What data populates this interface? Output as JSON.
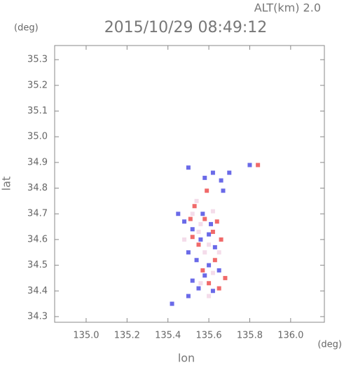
{
  "chart_data": {
    "type": "scatter",
    "annotation": "ALT(km) 2.0",
    "title": "2015/10/29 08:49:12",
    "y_unit": "(deg)",
    "x_unit": "(deg)",
    "ylabel": "lat",
    "xlabel": "lon",
    "xlim": [
      134.846,
      136.165
    ],
    "ylim": [
      34.278,
      35.355
    ],
    "xticks": [
      {
        "value": 135,
        "label": "135.0"
      },
      135.2,
      135.4,
      135.6,
      135.8,
      {
        "value": 136,
        "label": "136.0"
      }
    ],
    "yticks": [
      34.3,
      34.4,
      34.5,
      34.6,
      34.7,
      34.8,
      34.9,
      {
        "value": 35,
        "label": "35.0"
      },
      35.1,
      35.2,
      35.3
    ],
    "series": [
      {
        "color": "#f4dcea",
        "x": [
          135.52,
          135.56,
          135.6,
          135.55,
          135.58,
          135.62,
          135.56,
          135.6,
          135.48,
          135.54,
          135.65,
          135.62
        ],
        "values": [
          34.7,
          34.66,
          34.58,
          34.63,
          34.55,
          34.47,
          34.43,
          34.38,
          34.6,
          34.75,
          34.55,
          34.71
        ]
      },
      {
        "color": "#6a6ae8",
        "x": [
          135.5,
          135.62,
          135.58,
          135.66,
          135.45,
          135.48,
          135.52,
          135.56,
          135.6,
          135.63,
          135.5,
          135.54,
          135.6,
          135.65,
          135.58,
          135.52,
          135.55,
          135.62,
          135.5,
          135.42,
          135.67,
          135.7,
          135.8,
          135.57,
          135.61
        ],
        "values": [
          34.88,
          34.86,
          34.84,
          34.83,
          34.7,
          34.67,
          34.64,
          34.6,
          34.62,
          34.57,
          34.55,
          34.52,
          34.5,
          34.48,
          34.46,
          34.44,
          34.41,
          34.4,
          34.38,
          34.35,
          34.79,
          34.86,
          34.89,
          34.7,
          34.66
        ]
      },
      {
        "color": "#f06a6a",
        "x": [
          135.53,
          135.58,
          135.62,
          135.55,
          135.66,
          135.52,
          135.63,
          135.68,
          135.6,
          135.65,
          135.57,
          135.84,
          135.59,
          135.51,
          135.64
        ],
        "values": [
          34.73,
          34.68,
          34.63,
          34.58,
          34.6,
          34.61,
          34.52,
          34.45,
          34.43,
          34.41,
          34.48,
          34.89,
          34.79,
          34.68,
          34.67
        ]
      }
    ]
  }
}
